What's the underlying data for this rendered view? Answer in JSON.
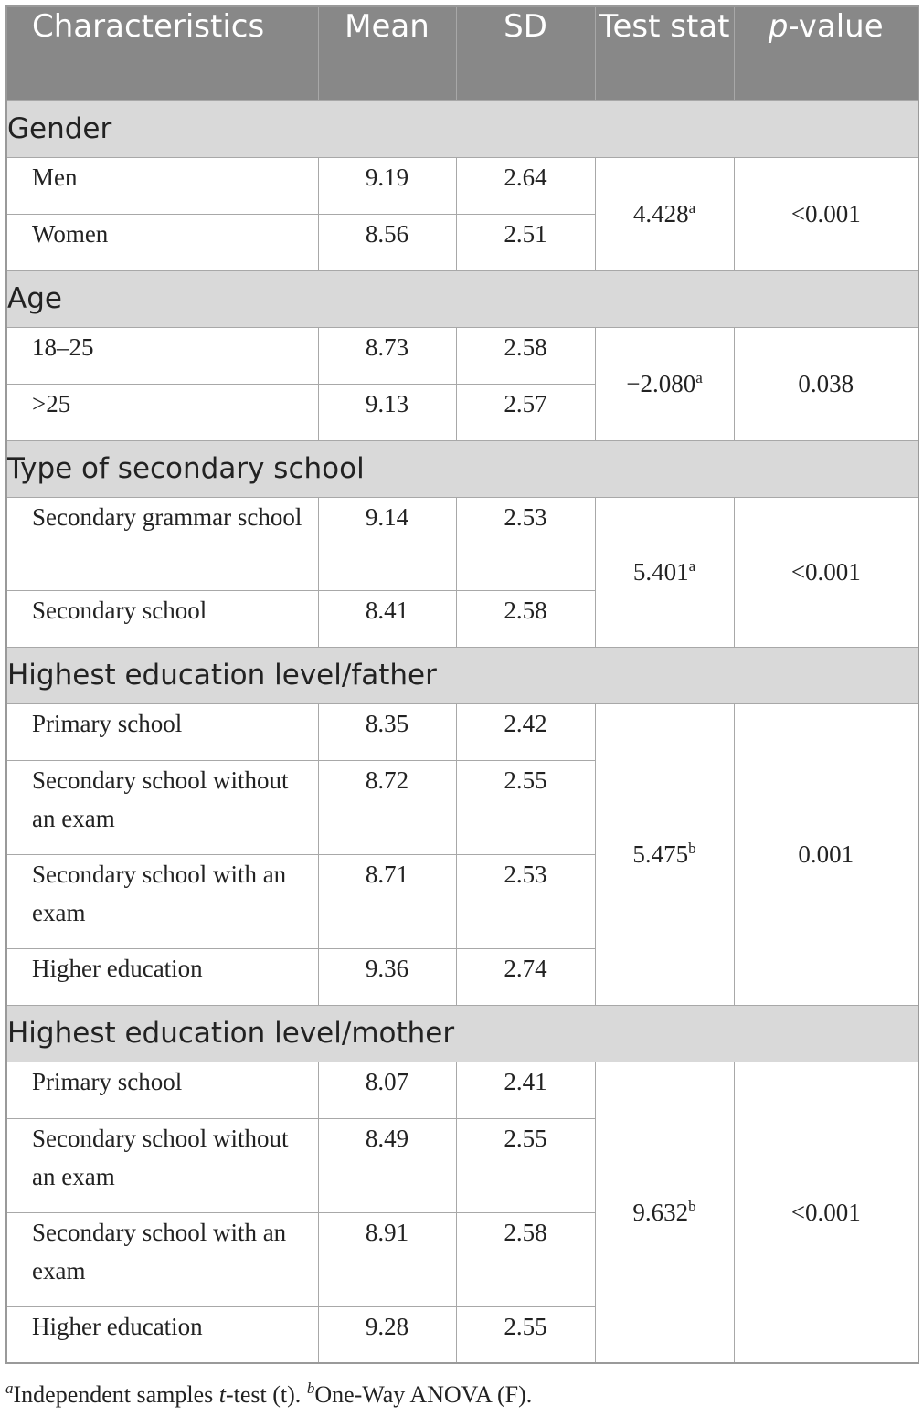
{
  "header": {
    "characteristics": "Characteristics",
    "mean": "Mean",
    "sd": "SD",
    "test_stat": "Test stat",
    "p_value_italic": "p",
    "p_value_rest": "-value"
  },
  "sections": [
    {
      "title": "Gender",
      "test_stat": "4.428",
      "test_stat_sup": "a",
      "p_value": "<0.001",
      "rows": [
        {
          "label": "Men",
          "mean": "9.19",
          "sd": "2.64"
        },
        {
          "label": "Women",
          "mean": "8.56",
          "sd": "2.51"
        }
      ]
    },
    {
      "title": "Age",
      "test_stat": "−2.080",
      "test_stat_sup": "a",
      "p_value": "0.038",
      "rows": [
        {
          "label": "18–25",
          "mean": "8.73",
          "sd": "2.58"
        },
        {
          "label": ">25",
          "mean": "9.13",
          "sd": "2.57"
        }
      ]
    },
    {
      "title": "Type of secondary school",
      "test_stat": "5.401",
      "test_stat_sup": "a",
      "p_value": "<0.001",
      "rows": [
        {
          "label": "Secondary grammar school",
          "mean": "9.14",
          "sd": "2.53"
        },
        {
          "label": "Secondary school",
          "mean": "8.41",
          "sd": "2.58"
        }
      ]
    },
    {
      "title": "Highest education level/father",
      "test_stat": "5.475",
      "test_stat_sup": "b",
      "p_value": "0.001",
      "rows": [
        {
          "label": "Primary school",
          "mean": "8.35",
          "sd": "2.42"
        },
        {
          "label": "Secondary school without an exam",
          "mean": "8.72",
          "sd": "2.55"
        },
        {
          "label": "Secondary school with an exam",
          "mean": "8.71",
          "sd": "2.53"
        },
        {
          "label": "Higher education",
          "mean": "9.36",
          "sd": "2.74"
        }
      ]
    },
    {
      "title": "Highest education level/mother",
      "test_stat": "9.632",
      "test_stat_sup": "b",
      "p_value": "<0.001",
      "rows": [
        {
          "label": "Primary school",
          "mean": "8.07",
          "sd": "2.41"
        },
        {
          "label": "Secondary school without an exam",
          "mean": "8.49",
          "sd": "2.55"
        },
        {
          "label": "Secondary school with an exam",
          "mean": "8.91",
          "sd": "2.58"
        },
        {
          "label": "Higher education",
          "mean": "9.28",
          "sd": "2.55"
        }
      ]
    }
  ],
  "footnote": {
    "a_marker": "a",
    "a_text_1": "Independent samples ",
    "a_text_t": "t",
    "a_text_2": "-test (t). ",
    "b_marker": "b",
    "b_text": "One-Way ANOVA (F)."
  }
}
